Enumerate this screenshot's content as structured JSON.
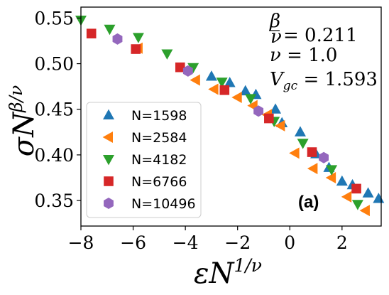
{
  "chart_data": {
    "type": "scatter",
    "title": "",
    "xlabel": "εN^{1/ν}",
    "ylabel": "σN^{β/ν}",
    "xlim": [
      -8,
      3.5
    ],
    "ylim": [
      0.322,
      0.562
    ],
    "xticks": [
      -8,
      -6,
      -4,
      -2,
      0,
      2
    ],
    "xtick_labels": [
      "−8",
      "−6",
      "−4",
      "−2",
      "0",
      "2"
    ],
    "yticks": [
      0.35,
      0.4,
      0.45,
      0.5,
      0.55
    ],
    "ytick_labels": [
      "0.35",
      "0.40",
      "0.45",
      "0.50",
      "0.55"
    ],
    "grid": false,
    "legend_position": "lower-left",
    "panel_label": "(a)",
    "annotations": [
      "β/ν = 0.211",
      "ν = 1.0",
      "V_gc = 1.593"
    ],
    "series": [
      {
        "name": "N=1598",
        "marker": "triangle-up",
        "color": "#1f77b4",
        "x": [
          -3.0,
          -2.3,
          -1.7,
          -1.3,
          -0.55,
          -0.3,
          0.4,
          1.0,
          1.5,
          2.0,
          2.4,
          3.0,
          3.4
        ],
        "y": [
          0.486,
          0.479,
          0.47,
          0.466,
          0.45,
          0.435,
          0.425,
          0.401,
          0.386,
          0.371,
          0.367,
          0.358,
          0.352
        ]
      },
      {
        "name": "N=2584",
        "marker": "triangle-left",
        "color": "#ff7f0e",
        "x": [
          -5.8,
          -3.6,
          -2.9,
          -2.0,
          -1.4,
          -0.85,
          -0.35,
          0.2,
          0.9,
          1.6,
          2.2,
          2.9
        ],
        "y": [
          0.517,
          0.482,
          0.472,
          0.463,
          0.454,
          0.444,
          0.432,
          0.402,
          0.385,
          0.375,
          0.354,
          0.339
        ]
      },
      {
        "name": "N=4182",
        "marker": "triangle-down",
        "color": "#2ca02c",
        "x": [
          -8.0,
          -6.9,
          -5.8,
          -4.7,
          -3.7,
          -2.6,
          -1.5,
          -0.6,
          0.5,
          1.6,
          2.6
        ],
        "y": [
          0.548,
          0.538,
          0.529,
          0.511,
          0.496,
          0.48,
          0.462,
          0.437,
          0.413,
          0.384,
          0.346
        ]
      },
      {
        "name": "N=6766",
        "marker": "square",
        "color": "#d62728",
        "x": [
          -7.6,
          -5.9,
          -4.2,
          -2.5,
          -0.8,
          0.85,
          2.55
        ],
        "y": [
          0.533,
          0.516,
          0.496,
          0.471,
          0.44,
          0.403,
          0.363
        ]
      },
      {
        "name": "N=10496",
        "marker": "hexagon",
        "color": "#9467bd",
        "x": [
          -6.6,
          -3.9,
          -1.2,
          1.3
        ],
        "y": [
          0.527,
          0.492,
          0.448,
          0.397
        ]
      }
    ]
  }
}
